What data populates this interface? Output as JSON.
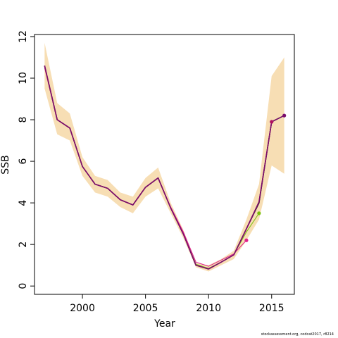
{
  "chart_data": {
    "type": "line",
    "xlabel": "Year",
    "ylabel": "SSB",
    "xlim": [
      1996.2,
      2016.8
    ],
    "ylim": [
      -0.4,
      12.1
    ],
    "xticks": [
      2000,
      2005,
      2010,
      2015
    ],
    "yticks": [
      0,
      2,
      4,
      6,
      8,
      10,
      12
    ],
    "grid": false,
    "legend": "none",
    "x": [
      1997,
      1998,
      1999,
      2000,
      2001,
      2002,
      2003,
      2004,
      2005,
      2006,
      2007,
      2008,
      2009,
      2010,
      2011,
      2012,
      2013,
      2014,
      2015,
      2016
    ],
    "band": {
      "color": "#f7deb4",
      "lower": [
        9.5,
        7.3,
        7.0,
        5.3,
        4.5,
        4.3,
        3.8,
        3.5,
        4.3,
        4.7,
        3.5,
        2.3,
        0.9,
        0.7,
        1.0,
        1.3,
        2.2,
        3.2,
        5.8,
        5.4
      ],
      "upper": [
        11.7,
        8.8,
        8.3,
        6.2,
        5.3,
        5.1,
        4.5,
        4.3,
        5.2,
        5.7,
        4.0,
        2.7,
        1.1,
        1.0,
        1.3,
        1.7,
        3.2,
        4.9,
        10.1,
        11.0
      ]
    },
    "series": [
      {
        "color": "#000000",
        "width": 1.5,
        "x": [
          1997,
          1998,
          1999,
          2000,
          2001,
          2002,
          2003,
          2004,
          2005,
          2006,
          2007,
          2008,
          2009,
          2010,
          2011,
          2012,
          2013,
          2014,
          2015,
          2016
        ],
        "values": [
          10.6,
          8.0,
          7.6,
          5.75,
          4.9,
          4.7,
          4.15,
          3.9,
          4.75,
          5.2,
          3.75,
          2.5,
          1.0,
          0.82,
          1.15,
          1.5,
          2.75,
          4.0,
          7.9,
          8.2
        ]
      },
      {
        "color": "#e0218a",
        "width": 1,
        "x": [
          1997,
          1998,
          1999,
          2000,
          2001,
          2002,
          2003,
          2004,
          2005,
          2006,
          2007,
          2008,
          2009,
          2010,
          2011,
          2012,
          2013
        ],
        "values": [
          10.5,
          8.0,
          7.6,
          5.75,
          4.9,
          4.7,
          4.15,
          3.9,
          4.75,
          5.2,
          3.8,
          2.6,
          1.15,
          0.95,
          1.25,
          1.55,
          2.2
        ],
        "end_marker": true
      },
      {
        "color": "#7ac00a",
        "width": 1,
        "x": [
          1997,
          1998,
          1999,
          2000,
          2001,
          2002,
          2003,
          2004,
          2005,
          2006,
          2007,
          2008,
          2009,
          2010,
          2011,
          2012,
          2013,
          2014
        ],
        "values": [
          10.55,
          8.0,
          7.6,
          5.75,
          4.9,
          4.7,
          4.15,
          3.9,
          4.75,
          5.2,
          3.75,
          2.5,
          1.05,
          0.85,
          1.15,
          1.5,
          2.6,
          3.5
        ],
        "end_marker": true
      },
      {
        "color": "#b01060",
        "width": 1.5,
        "x": [
          1997,
          1998,
          1999,
          2000,
          2001,
          2002,
          2003,
          2004,
          2005,
          2006,
          2007,
          2008,
          2009,
          2010,
          2011,
          2012,
          2013,
          2014,
          2015
        ],
        "values": [
          10.6,
          8.0,
          7.6,
          5.75,
          4.9,
          4.7,
          4.15,
          3.9,
          4.75,
          5.2,
          3.75,
          2.5,
          1.0,
          0.82,
          1.15,
          1.5,
          2.75,
          4.05,
          7.9
        ],
        "end_marker": true
      },
      {
        "color": "#7a0d6e",
        "width": 1.5,
        "x": [
          1997,
          1998,
          1999,
          2000,
          2001,
          2002,
          2003,
          2004,
          2005,
          2006,
          2007,
          2008,
          2009,
          2010,
          2011,
          2012,
          2013,
          2014,
          2015,
          2016
        ],
        "values": [
          10.6,
          8.0,
          7.6,
          5.75,
          4.9,
          4.7,
          4.15,
          3.9,
          4.75,
          5.2,
          3.75,
          2.5,
          1.0,
          0.82,
          1.15,
          1.5,
          2.75,
          4.05,
          7.9,
          8.2
        ],
        "end_marker": true
      }
    ]
  },
  "footnote": "stockassessment.org, codcat2017, r8214"
}
